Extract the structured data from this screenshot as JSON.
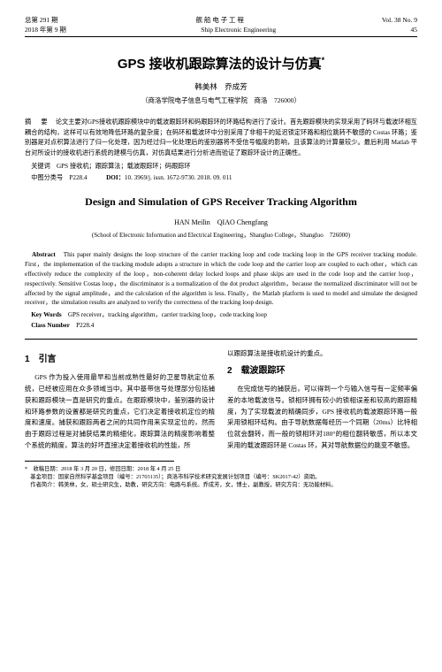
{
  "header": {
    "left_top": "总第 291 期",
    "left_bottom": "2018 年第 9 期",
    "center_top": "舰 船 电 子 工 程",
    "center_bottom": "Ship Electronic Engineering",
    "right_top": "Vol. 38 No. 9",
    "right_bottom": "45"
  },
  "title_cn": "GPS 接收机跟踪算法的设计与仿真",
  "title_sup": "*",
  "authors_cn": "韩美林　乔成芳",
  "affil_cn": "（商洛学院电子信息与电气工程学院　商洛　726000）",
  "abstract_cn_label": "摘　要",
  "abstract_cn": "论文主要对GPS接收机跟踪模块中的载波跟踪环和码跟踪环的环路结构进行了设计。首先跟踪模块的实现采用了码环与载波环相互耦合的结构，这样可以有效地降低环路的复杂度；在码环和载波环中分别采用了非相干的延迟锁定环路和相位跳转不敏感的 Costas 环路；鉴别器是对点积算法进行了归一化处理，因为经过归一化处理后的鉴别器将不受信号幅度的影响，且该算法的计算量较少。最后利用 Matlab 平台对所设计的接收机进行系统的建模与仿真，对仿真结果进行分析进而验证了跟踪环设计的正确性。",
  "keywords_cn_label": "关键词",
  "keywords_cn": "GPS 接收机；跟踪算法；载波跟踪环；码跟踪环",
  "class_cn_label": "中图分类号",
  "class_cn": "P228.4",
  "doi_label": "DOI：",
  "doi": "10. 3969/j. issn. 1672-9730. 2018. 09. 011",
  "title_en": "Design and Simulation of GPS Receiver Tracking Algorithm",
  "authors_en": "HAN Meilin　QIAO Chengfang",
  "affil_en": "(School of Electronic Information and Electrical Engineering，Shangluo College，Shangluo　726000)",
  "abstract_en_label": "Abstract",
  "abstract_en": "This paper mainly designs the loop structure of the carrier tracking loop and code tracking loop in the GPS receiver tracking module. First，the implementation of the tracking module adopts a structure in which the code loop and the carrier loop are coupled to each other，which can effectively reduce the complexity of the loop，non-coherent delay locked loops and phase skips are used in the code loop and the carrier loop，respectively. Sensitive Costas loop，the discriminator is a normalization of the dot product algorithm，because the normalized discriminator will not be affected by the signal amplitude，and the calculation of the algorithm is less. Finally，the Matlab platform is used to model and simulate the designed receiver，the simulation results are analyzed to verify the correctness of the tracking loop design.",
  "keywords_en_label": "Key Words",
  "keywords_en": "GPS receiver，tracking algorithm，carrier tracking loop，code tracking loop",
  "class_en_label": "Class Number",
  "class_en": "P228.4",
  "section1": {
    "num": "1",
    "title": "引言",
    "p1": "GPS 作为投入使用最早和当前成熟性最好的卫星导航定位系统，已经被应用在众多领域当中。其中基带信号处理部分包括捕获和跟踪模块一直是研究的重点。在跟踪模块中，鉴别器的设计和环路参数的设置都是研究的重点，它们决定着接收机定位的精度和速度。捕获和跟踪两者之间的共同作用来实现定位的，然而由于跟踪过程是对捕获结果的精细化，跟踪算法的精度影响着整个系统的精度，算法的好坏直接决定着接收机的性能，所",
    "tail": "以跟踪算法是接收机设计的重点。"
  },
  "section2": {
    "num": "2",
    "title": "载波跟踪环",
    "p1": "在完成信号的捕获后，可以得到一个与输入信号有一定频率偏差的本地载波信号。锁相环拥有较小的锁相误差和较高的跟踪精度，为了实现载波的精确同步，GPS 接收机的载波跟踪环路一般采用锁相环结构。由于导航数据每经历一个同期（20ms）比特相位就会翻转，而一般的锁相环对180°的相位翻转敏感，所以本文采用的载波跟踪环是 Costas 环，其对导航数据位的跳变不敏感。"
  },
  "footnote": {
    "star": "*",
    "line1": "收稿日期：2018 年 3 月 20 日，修回日期：2018 年 4 月 25 日",
    "line2": "基金项目：国家自然科学基金项目（编号：21703135）；商洛市科学技术研究发展计划项目（编号：SK2017-42）资助。",
    "line3": "作者简介：韩美林，女，硕士研究生，助教，研究方向：电路与系统。乔成芳，女，博士，副教授，研究方向：无功能材料。"
  }
}
